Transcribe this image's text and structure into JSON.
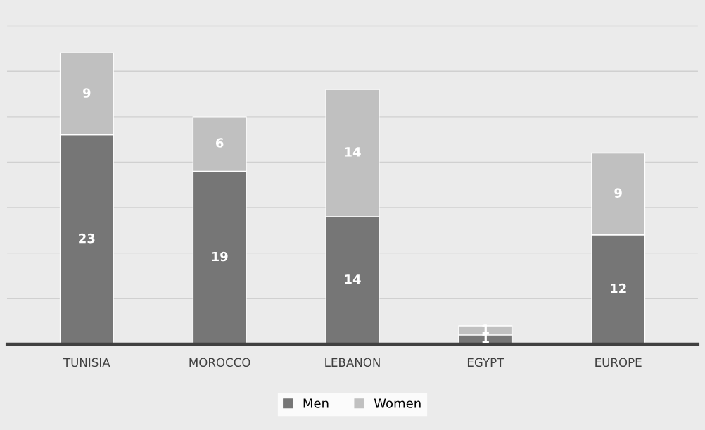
{
  "chart_data": {
    "type": "bar",
    "stacked": true,
    "categories": [
      "TUNISIA",
      "MOROCCO",
      "LEBANON",
      "EGYPT",
      "EUROPE"
    ],
    "series": [
      {
        "name": "Men",
        "color": "#767676",
        "values": [
          23,
          19,
          14,
          1,
          12
        ]
      },
      {
        "name": "Women",
        "color": "#c0c0c0",
        "values": [
          9,
          6,
          14,
          1,
          9
        ]
      }
    ],
    "ylim": [
      0,
      35
    ],
    "yticks": [
      0,
      5,
      10,
      15,
      20,
      25,
      30,
      35
    ],
    "grid": "y",
    "tick_labels": "x",
    "data_labels": true,
    "legend": "bottom"
  }
}
